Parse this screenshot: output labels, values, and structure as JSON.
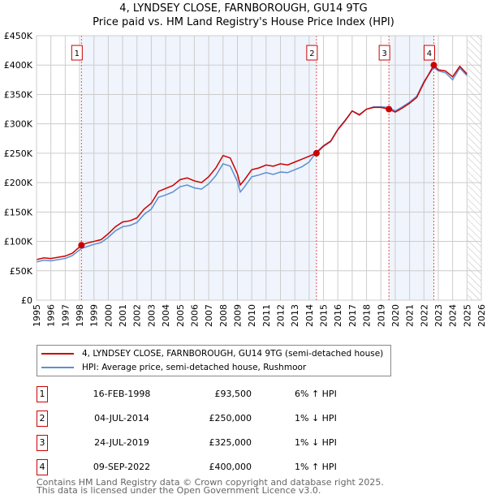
{
  "chart_data": {
    "type": "line",
    "title": "4, LYNDSEY CLOSE, FARNBOROUGH, GU14 9TG",
    "subtitle": "Price paid vs. HM Land Registry's House Price Index (HPI)",
    "xlim": [
      1995,
      2026
    ],
    "ylim": [
      0,
      450000
    ],
    "y_ticks": [
      0,
      50000,
      100000,
      150000,
      200000,
      250000,
      300000,
      350000,
      400000,
      450000
    ],
    "y_tick_labels": [
      "£0",
      "£50K",
      "£100K",
      "£150K",
      "£200K",
      "£250K",
      "£300K",
      "£350K",
      "£400K",
      "£450K"
    ],
    "x_ticks": [
      "1995",
      "1996",
      "1997",
      "1998",
      "1999",
      "2000",
      "2001",
      "2002",
      "2003",
      "2004",
      "2005",
      "2006",
      "2007",
      "2008",
      "2009",
      "2010",
      "2011",
      "2012",
      "2013",
      "2014",
      "2015",
      "2016",
      "2017",
      "2018",
      "2019",
      "2020",
      "2021",
      "2022",
      "2023",
      "2024",
      "2025",
      "2026"
    ],
    "grid": true,
    "series": [
      {
        "name": "4, LYNDSEY CLOSE, FARNBOROUGH, GU14 9TG (semi-detached house)",
        "color": "#cc0000",
        "x": [
          1995,
          1995.5,
          1996,
          1996.5,
          1997,
          1997.5,
          1998.13,
          1998.5,
          1999,
          1999.5,
          2000,
          2000.5,
          2001,
          2001.5,
          2002,
          2002.5,
          2003,
          2003.5,
          2004,
          2004.5,
          2005,
          2005.5,
          2006,
          2006.5,
          2007,
          2007.5,
          2008,
          2008.5,
          2009,
          2009.2,
          2009.5,
          2010,
          2010.5,
          2011,
          2011.5,
          2012,
          2012.5,
          2013,
          2013.5,
          2014,
          2014.5,
          2015,
          2015.5,
          2016,
          2016.5,
          2017,
          2017.5,
          2018,
          2018.5,
          2019,
          2019.56,
          2020,
          2020.5,
          2021,
          2021.5,
          2022,
          2022.69,
          2023,
          2023.5,
          2024,
          2024.5,
          2025
        ],
        "y": [
          69000,
          72000,
          71000,
          73000,
          75000,
          80000,
          93500,
          97000,
          100000,
          103000,
          113000,
          125000,
          133000,
          135000,
          140000,
          155000,
          165000,
          185000,
          190000,
          195000,
          205000,
          208000,
          203000,
          200000,
          210000,
          225000,
          246000,
          242000,
          215000,
          196000,
          205000,
          222000,
          225000,
          230000,
          228000,
          232000,
          230000,
          235000,
          240000,
          245000,
          250000,
          262000,
          270000,
          290000,
          305000,
          322000,
          315000,
          325000,
          328000,
          328000,
          325000,
          320000,
          327000,
          335000,
          345000,
          370000,
          400000,
          392000,
          390000,
          380000,
          398000,
          385000
        ]
      },
      {
        "name": "HPI: Average price, semi-detached house, Rushmoor",
        "color": "#5b8fd4",
        "x": [
          1995,
          1995.5,
          1996,
          1996.5,
          1997,
          1997.5,
          1998.13,
          1998.5,
          1999,
          1999.5,
          2000,
          2000.5,
          2001,
          2001.5,
          2002,
          2002.5,
          2003,
          2003.5,
          2004,
          2004.5,
          2005,
          2005.5,
          2006,
          2006.5,
          2007,
          2007.5,
          2008,
          2008.5,
          2009,
          2009.2,
          2009.5,
          2010,
          2010.5,
          2011,
          2011.5,
          2012,
          2012.5,
          2013,
          2013.5,
          2014,
          2014.5,
          2015,
          2015.5,
          2016,
          2016.5,
          2017,
          2017.5,
          2018,
          2018.5,
          2019,
          2019.56,
          2020,
          2020.5,
          2021,
          2021.5,
          2022,
          2022.69,
          2023,
          2023.5,
          2024,
          2024.5,
          2025
        ],
        "y": [
          65000,
          68000,
          67000,
          69000,
          71000,
          76000,
          88000,
          91000,
          95000,
          98000,
          107000,
          118000,
          125000,
          127000,
          132000,
          146000,
          155000,
          175000,
          179000,
          184000,
          193000,
          196000,
          191000,
          189000,
          198000,
          212000,
          232000,
          228000,
          202000,
          184000,
          193000,
          210000,
          213000,
          217000,
          214000,
          218000,
          217000,
          222000,
          227000,
          235000,
          252000,
          263000,
          271000,
          291000,
          306000,
          322000,
          316000,
          325000,
          329000,
          329000,
          328000,
          322000,
          329000,
          337000,
          347000,
          372000,
          396000,
          390000,
          387000,
          375000,
          395000,
          382000
        ]
      }
    ],
    "annotations": [
      {
        "label": "1",
        "x": 1998.13,
        "y": 93500
      },
      {
        "label": "2",
        "x": 2014.51,
        "y": 250000
      },
      {
        "label": "3",
        "x": 2019.56,
        "y": 325000
      },
      {
        "label": "4",
        "x": 2022.69,
        "y": 400000
      }
    ],
    "shaded_ranges": [
      [
        1998.13,
        2014.51
      ],
      [
        2019.56,
        2022.69
      ]
    ],
    "hatched_from": 2025.05,
    "legend_position": "below"
  },
  "sales": [
    {
      "num": "1",
      "date": "16-FEB-1998",
      "price": "£93,500",
      "hpi": "6% ↑ HPI"
    },
    {
      "num": "2",
      "date": "04-JUL-2014",
      "price": "£250,000",
      "hpi": "1% ↓ HPI"
    },
    {
      "num": "3",
      "date": "24-JUL-2019",
      "price": "£325,000",
      "hpi": "1% ↓ HPI"
    },
    {
      "num": "4",
      "date": "09-SEP-2022",
      "price": "£400,000",
      "hpi": "1% ↑ HPI"
    }
  ],
  "footer": {
    "line1": "Contains HM Land Registry data © Crown copyright and database right 2025.",
    "line2": "This data is licensed under the Open Government Licence v3.0."
  }
}
